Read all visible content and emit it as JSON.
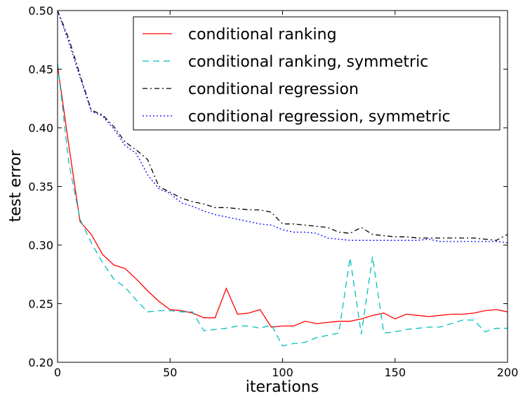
{
  "chart_data": {
    "type": "line",
    "xlabel": "iterations",
    "ylabel": "test error",
    "xlim": [
      0,
      200
    ],
    "ylim": [
      0.2,
      0.5
    ],
    "xticks": [
      "0",
      "50",
      "100",
      "150",
      "200"
    ],
    "yticks": [
      "0.20",
      "0.25",
      "0.30",
      "0.35",
      "0.40",
      "0.45",
      "0.50"
    ],
    "legend_position": "top-right",
    "grid": false,
    "x": [
      0,
      5,
      10,
      15,
      20,
      25,
      30,
      35,
      40,
      45,
      50,
      55,
      60,
      65,
      70,
      75,
      80,
      85,
      90,
      95,
      100,
      105,
      110,
      115,
      120,
      125,
      130,
      135,
      140,
      145,
      150,
      155,
      160,
      165,
      170,
      175,
      180,
      185,
      190,
      195,
      200
    ],
    "series": [
      {
        "name": "conditional ranking",
        "color": "#ff0000",
        "style": "solid",
        "values": [
          0.453,
          0.385,
          0.32,
          0.309,
          0.292,
          0.283,
          0.28,
          0.271,
          0.261,
          0.252,
          0.245,
          0.244,
          0.242,
          0.238,
          0.238,
          0.263,
          0.241,
          0.242,
          0.245,
          0.23,
          0.231,
          0.231,
          0.235,
          0.233,
          0.234,
          0.235,
          0.235,
          0.237,
          0.24,
          0.242,
          0.237,
          0.241,
          0.24,
          0.239,
          0.24,
          0.241,
          0.241,
          0.242,
          0.244,
          0.245,
          0.243
        ]
      },
      {
        "name": "conditional ranking, symmetric",
        "color": "#00bfbf",
        "style": "dashed",
        "values": [
          0.455,
          0.37,
          0.322,
          0.302,
          0.285,
          0.271,
          0.264,
          0.253,
          0.243,
          0.244,
          0.244,
          0.243,
          0.243,
          0.227,
          0.228,
          0.229,
          0.231,
          0.231,
          0.229,
          0.232,
          0.214,
          0.216,
          0.217,
          0.221,
          0.223,
          0.225,
          0.289,
          0.224,
          0.29,
          0.225,
          0.226,
          0.228,
          0.229,
          0.23,
          0.23,
          0.233,
          0.236,
          0.236,
          0.226,
          0.229,
          0.229
        ]
      },
      {
        "name": "conditional regression",
        "color": "#000000",
        "style": "dashdot",
        "values": [
          0.5,
          0.476,
          0.445,
          0.415,
          0.411,
          0.401,
          0.388,
          0.381,
          0.373,
          0.35,
          0.345,
          0.34,
          0.337,
          0.335,
          0.332,
          0.332,
          0.331,
          0.33,
          0.33,
          0.328,
          0.318,
          0.318,
          0.317,
          0.316,
          0.315,
          0.311,
          0.31,
          0.315,
          0.309,
          0.308,
          0.307,
          0.307,
          0.306,
          0.306,
          0.306,
          0.306,
          0.306,
          0.306,
          0.305,
          0.304,
          0.309
        ]
      },
      {
        "name": "conditional regression, symmetric",
        "color": "#0000ff",
        "style": "dotted",
        "values": [
          0.5,
          0.473,
          0.443,
          0.414,
          0.41,
          0.399,
          0.385,
          0.378,
          0.36,
          0.348,
          0.344,
          0.336,
          0.333,
          0.329,
          0.326,
          0.324,
          0.322,
          0.32,
          0.318,
          0.317,
          0.313,
          0.311,
          0.311,
          0.31,
          0.306,
          0.305,
          0.304,
          0.304,
          0.304,
          0.304,
          0.304,
          0.304,
          0.304,
          0.305,
          0.303,
          0.303,
          0.303,
          0.303,
          0.303,
          0.303,
          0.302
        ]
      }
    ]
  }
}
